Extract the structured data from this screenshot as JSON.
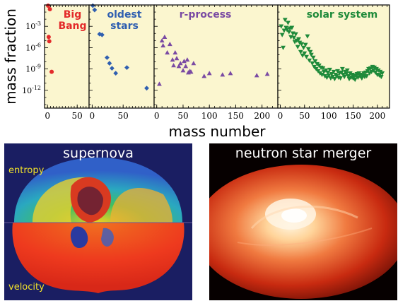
{
  "chart_data": {
    "type": "scatter",
    "xlabel": "mass number",
    "ylabel": "mass fraction",
    "y_scale": "log",
    "ylim_log10": [
      -14.5,
      0
    ],
    "y_ticks": [
      {
        "exp": -3,
        "label": "10-3"
      },
      {
        "exp": -6,
        "label": "10-6"
      },
      {
        "exp": -9,
        "label": "10-9"
      },
      {
        "exp": -12,
        "label": "10-12"
      }
    ],
    "panels": [
      {
        "id": "big-bang",
        "title_lines": [
          "Big",
          "Bang"
        ],
        "color": "#e32a2a",
        "marker": "circle",
        "xlim": [
          -5,
          70
        ],
        "x_ticks": [
          0,
          50
        ],
        "points": [
          [
            1,
            -0.1
          ],
          [
            4,
            -0.6
          ],
          [
            2,
            -4.5
          ],
          [
            3,
            -5.1
          ],
          [
            7,
            -9.4
          ]
        ]
      },
      {
        "id": "oldest-stars",
        "title_lines": [
          "oldest",
          "stars"
        ],
        "color": "#2f5fb0",
        "marker": "diamond",
        "xlim": [
          -5,
          100
        ],
        "x_ticks": [
          0,
          50
        ],
        "points": [
          [
            1,
            -0.1
          ],
          [
            4,
            -0.7
          ],
          [
            12,
            -4.1
          ],
          [
            16,
            -4.2
          ],
          [
            24,
            -7.4
          ],
          [
            28,
            -8.2
          ],
          [
            32,
            -8.9
          ],
          [
            38,
            -9.6
          ],
          [
            56,
            -8.8
          ],
          [
            88,
            -11.7
          ]
        ]
      },
      {
        "id": "r-process",
        "title_lines": [
          "r-process"
        ],
        "color": "#7a4aa3",
        "marker": "triangle-up",
        "xlim": [
          -5,
          230
        ],
        "x_ticks": [
          0,
          50,
          100,
          150,
          200
        ],
        "points": [
          [
            5,
            -11.1
          ],
          [
            10,
            -5.0
          ],
          [
            12,
            -5.7
          ],
          [
            15,
            -4.5
          ],
          [
            20,
            -6.7
          ],
          [
            25,
            -5.5
          ],
          [
            30,
            -7.7
          ],
          [
            32,
            -8.5
          ],
          [
            35,
            -6.7
          ],
          [
            38,
            -7.5
          ],
          [
            42,
            -8.6
          ],
          [
            45,
            -8.2
          ],
          [
            50,
            -9.2
          ],
          [
            52,
            -7.9
          ],
          [
            55,
            -8.6
          ],
          [
            58,
            -7.7
          ],
          [
            60,
            -9.5
          ],
          [
            63,
            -9.3
          ],
          [
            65,
            -9.4
          ],
          [
            70,
            -8.2
          ],
          [
            90,
            -10.0
          ],
          [
            100,
            -9.6
          ],
          [
            125,
            -9.8
          ],
          [
            140,
            -9.6
          ],
          [
            190,
            -9.9
          ],
          [
            210,
            -9.7
          ]
        ]
      },
      {
        "id": "solar-system",
        "title_lines": [
          "solar system"
        ],
        "color": "#1e8a3a",
        "marker": "triangle-down",
        "xlim": [
          -5,
          225
        ],
        "x_ticks": [
          0,
          50,
          100,
          150,
          200
        ],
        "points": [
          [
            2,
            -3.0
          ],
          [
            4,
            -4.2
          ],
          [
            6,
            -6.0
          ],
          [
            8,
            -3.6
          ],
          [
            10,
            -2.1
          ],
          [
            12,
            -3.2
          ],
          [
            14,
            -3.5
          ],
          [
            16,
            -2.5
          ],
          [
            18,
            -3.8
          ],
          [
            20,
            -3.3
          ],
          [
            22,
            -4.5
          ],
          [
            24,
            -3.2
          ],
          [
            26,
            -4.0
          ],
          [
            28,
            -4.6
          ],
          [
            30,
            -5.2
          ],
          [
            32,
            -4.1
          ],
          [
            34,
            -5.0
          ],
          [
            36,
            -5.9
          ],
          [
            38,
            -4.8
          ],
          [
            40,
            -5.3
          ],
          [
            42,
            -6.6
          ],
          [
            44,
            -5.5
          ],
          [
            46,
            -7.1
          ],
          [
            48,
            -6.0
          ],
          [
            50,
            -6.8
          ],
          [
            52,
            -5.6
          ],
          [
            54,
            -7.3
          ],
          [
            56,
            -4.4
          ],
          [
            58,
            -6.2
          ],
          [
            60,
            -7.8
          ],
          [
            62,
            -6.6
          ],
          [
            64,
            -7.0
          ],
          [
            66,
            -8.2
          ],
          [
            68,
            -7.4
          ],
          [
            70,
            -8.7
          ],
          [
            72,
            -7.9
          ],
          [
            74,
            -9.0
          ],
          [
            76,
            -8.3
          ],
          [
            78,
            -9.3
          ],
          [
            80,
            -8.5
          ],
          [
            82,
            -9.6
          ],
          [
            84,
            -8.8
          ],
          [
            86,
            -9.8
          ],
          [
            88,
            -8.9
          ],
          [
            90,
            -9.4
          ],
          [
            92,
            -10.0
          ],
          [
            94,
            -9.2
          ],
          [
            96,
            -10.2
          ],
          [
            98,
            -9.5
          ],
          [
            100,
            -9.9
          ],
          [
            102,
            -9.1
          ],
          [
            104,
            -10.3
          ],
          [
            106,
            -9.7
          ],
          [
            108,
            -10.1
          ],
          [
            110,
            -9.4
          ],
          [
            112,
            -10.4
          ],
          [
            114,
            -9.8
          ],
          [
            116,
            -10.0
          ],
          [
            118,
            -9.3
          ],
          [
            120,
            -10.2
          ],
          [
            122,
            -9.6
          ],
          [
            124,
            -10.3
          ],
          [
            126,
            -9.5
          ],
          [
            128,
            -9.0
          ],
          [
            130,
            -9.8
          ],
          [
            132,
            -10.1
          ],
          [
            134,
            -9.4
          ],
          [
            136,
            -9.7
          ],
          [
            138,
            -9.2
          ],
          [
            140,
            -10.0
          ],
          [
            142,
            -10.4
          ],
          [
            144,
            -9.6
          ],
          [
            146,
            -10.2
          ],
          [
            148,
            -9.8
          ],
          [
            150,
            -10.3
          ],
          [
            152,
            -9.9
          ],
          [
            154,
            -10.5
          ],
          [
            156,
            -10.0
          ],
          [
            158,
            -9.7
          ],
          [
            160,
            -10.2
          ],
          [
            162,
            -9.6
          ],
          [
            164,
            -10.0
          ],
          [
            166,
            -9.8
          ],
          [
            168,
            -10.3
          ],
          [
            170,
            -10.0
          ],
          [
            172,
            -9.6
          ],
          [
            174,
            -10.1
          ],
          [
            176,
            -9.5
          ],
          [
            178,
            -10.0
          ],
          [
            180,
            -9.3
          ],
          [
            182,
            -9.0
          ],
          [
            184,
            -9.6
          ],
          [
            186,
            -8.9
          ],
          [
            188,
            -9.4
          ],
          [
            190,
            -8.7
          ],
          [
            192,
            -9.2
          ],
          [
            194,
            -8.8
          ],
          [
            196,
            -9.5
          ],
          [
            198,
            -9.0
          ],
          [
            200,
            -9.8
          ],
          [
            202,
            -9.2
          ],
          [
            204,
            -9.9
          ],
          [
            206,
            -9.4
          ],
          [
            208,
            -10.1
          ],
          [
            210,
            -9.6
          ]
        ]
      }
    ]
  },
  "images": {
    "supernova": {
      "title": "supernova",
      "top_label": "entropy",
      "bottom_label": "velocity"
    },
    "merger": {
      "title": "neutron star merger"
    }
  }
}
